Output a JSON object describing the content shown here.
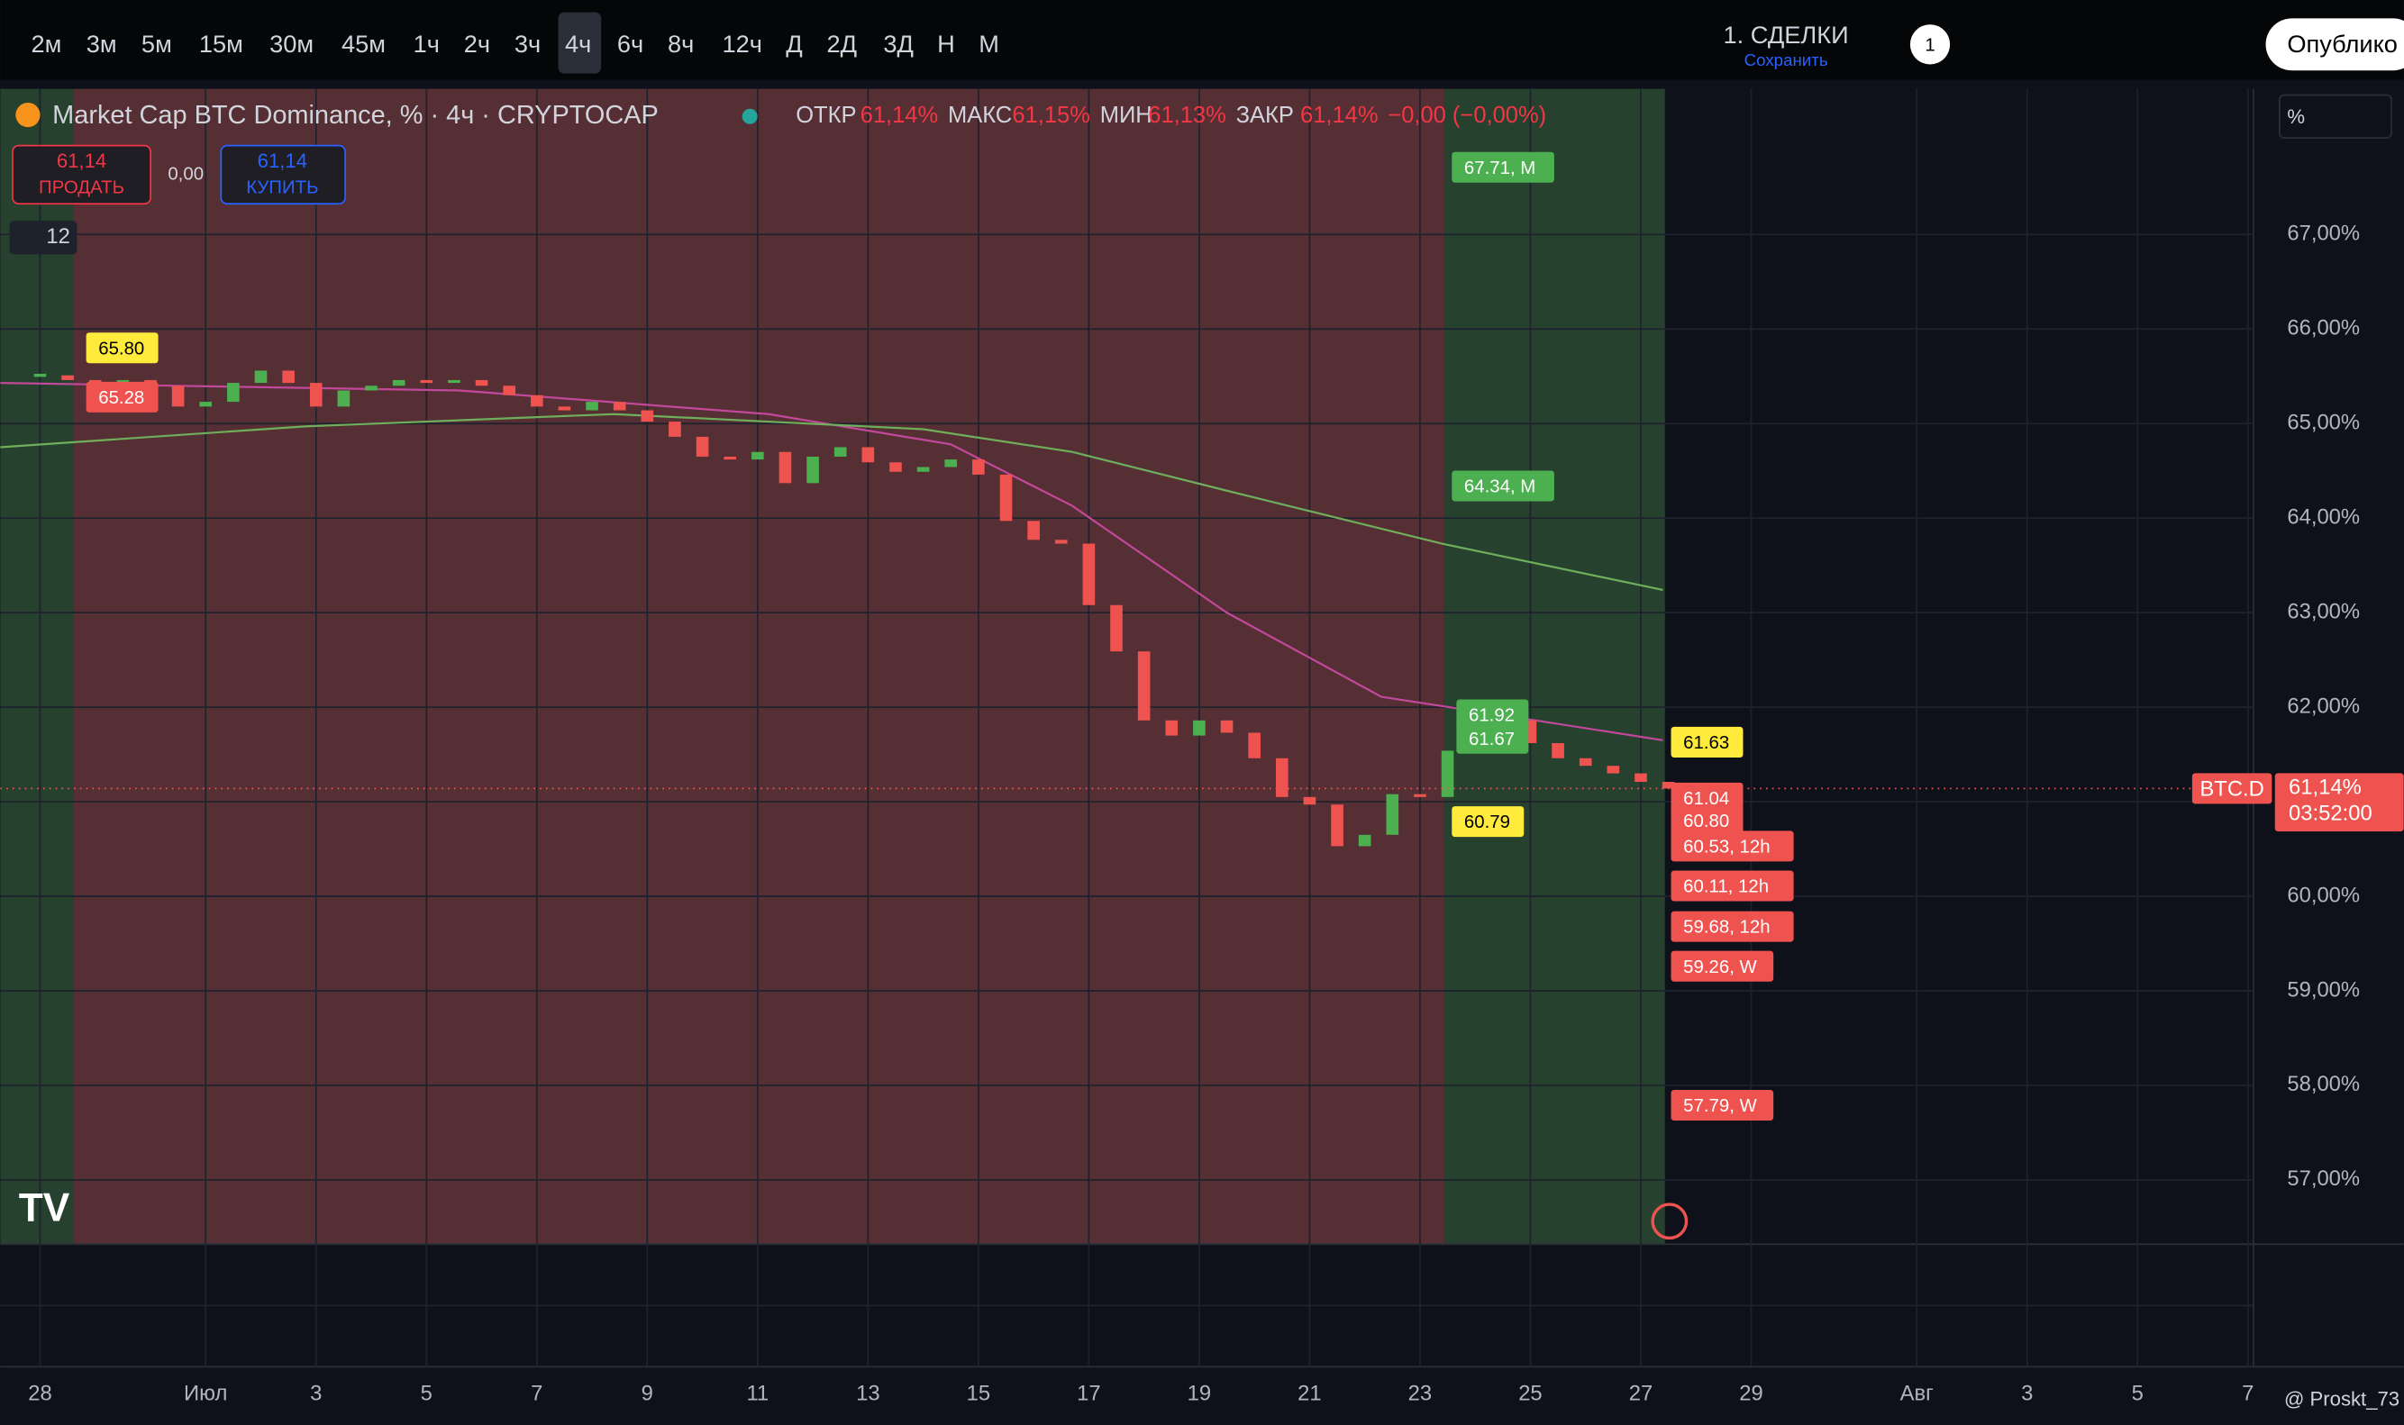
{
  "toolbar": {
    "intervals": [
      "2м",
      "3м",
      "5м",
      "15м",
      "30м",
      "45м",
      "1ч",
      "2ч",
      "3ч",
      "4ч",
      "6ч",
      "8ч",
      "12ч",
      "Д",
      "2Д",
      "3Д",
      "Н",
      "М"
    ],
    "layout": "1. СДЕЛКИ",
    "save": "Сохранить",
    "badge": "1",
    "publish": "Опублико"
  },
  "legend": {
    "title": "Market Cap BTC Dominance, % · 4ч · CRYPTOCAP",
    "ohlc": [
      [
        "ОТКР",
        "61,14%"
      ],
      [
        "МАКС",
        "61,15%"
      ],
      [
        "МИН",
        "61,13%"
      ],
      [
        "ЗАКР",
        "61,14%"
      ]
    ],
    "change": "−0,00 (−0,00%)"
  },
  "trade": {
    "sell_price": "61,14",
    "sell": "ПРОДАТЬ",
    "spread": "0,00",
    "buy_price": "61,14",
    "buy": "КУПИТЬ"
  },
  "indicators_count": "12",
  "scale_mode": "%",
  "watermark": "@ Proskt_73",
  "chart_data": {
    "type": "candlestick",
    "ylim": [
      56.32,
      68.54
    ],
    "yticks": [
      {
        "value": 57,
        "label": "57,00%"
      },
      {
        "value": 58,
        "label": "58,00%"
      },
      {
        "value": 59,
        "label": "59,00%"
      },
      {
        "value": 60,
        "label": "60,00%"
      },
      {
        "value": 61,
        "label": "61,00%"
      },
      {
        "value": 62,
        "label": "62,00%"
      },
      {
        "value": 63,
        "label": "63,00%"
      },
      {
        "value": 64,
        "label": "64,00%"
      },
      {
        "value": 65,
        "label": "65,00%"
      },
      {
        "value": 66,
        "label": "66,00%"
      },
      {
        "value": 67,
        "label": "67,00%"
      }
    ],
    "xlim": [
      -0.72,
      40.1
    ],
    "xticks": [
      {
        "value": 0,
        "label": "28"
      },
      {
        "value": 3,
        "label": "Июл"
      },
      {
        "value": 5,
        "label": "3"
      },
      {
        "value": 7,
        "label": "5"
      },
      {
        "value": 9,
        "label": "7"
      },
      {
        "value": 11,
        "label": "9"
      },
      {
        "value": 13,
        "label": "11"
      },
      {
        "value": 15,
        "label": "13"
      },
      {
        "value": 17,
        "label": "15"
      },
      {
        "value": 19,
        "label": "17"
      },
      {
        "value": 21,
        "label": "19"
      },
      {
        "value": 23,
        "label": "21"
      },
      {
        "value": 25,
        "label": "23"
      },
      {
        "value": 27,
        "label": "25"
      },
      {
        "value": 29,
        "label": "27"
      },
      {
        "value": 31,
        "label": "29"
      },
      {
        "value": 34,
        "label": "Авг"
      },
      {
        "value": 36,
        "label": "3"
      },
      {
        "value": 38,
        "label": "5"
      },
      {
        "value": 40,
        "label": "7"
      }
    ],
    "grid": true,
    "candles": {
      "up_color": "#4caf50",
      "down_color": "#ef5350",
      "x": [
        0,
        0.5,
        1,
        1.5,
        2,
        2.5,
        3,
        3.5,
        4,
        4.5,
        5,
        5.5,
        6,
        6.5,
        7,
        7.5,
        8,
        8.5,
        9,
        9.5,
        10,
        10.5,
        11,
        11.5,
        12,
        12.5,
        13,
        13.5,
        14,
        14.5,
        15,
        15.5,
        16,
        16.5,
        17,
        17.5,
        18,
        18.5,
        19,
        19.5,
        20,
        20.5,
        21,
        21.5,
        22,
        22.5,
        23,
        23.5,
        24,
        24.5,
        25,
        25.5,
        26,
        26.5,
        27,
        27.5,
        28,
        28.5,
        29,
        29.5
      ],
      "values": [
        65.51,
        65.46,
        65.43,
        65.46,
        65.4,
        65.18,
        65.23,
        65.43,
        65.56,
        65.43,
        65.18,
        65.35,
        65.4,
        65.46,
        65.43,
        65.46,
        65.4,
        65.3,
        65.18,
        65.14,
        65.23,
        65.14,
        65.02,
        64.86,
        64.65,
        64.62,
        64.7,
        64.37,
        64.65,
        64.75,
        64.59,
        64.49,
        64.54,
        64.62,
        64.46,
        63.97,
        63.77,
        63.73,
        63.08,
        62.59,
        61.86,
        61.7,
        61.86,
        61.73,
        61.46,
        61.05,
        60.97,
        60.53,
        60.65,
        61.08,
        61.05,
        61.54,
        61.94,
        61.86,
        61.62,
        61.46,
        61.38,
        61.3,
        61.21,
        61.14
      ]
    },
    "lines": [
      {
        "color": "#c2489c",
        "x": [
          -0.72,
          7.6,
          13.2,
          16.5,
          18.7,
          21.5,
          24.3,
          27.1,
          29.4
        ],
        "values": [
          65.43,
          65.35,
          65.1,
          64.78,
          64.13,
          63.0,
          62.11,
          61.86,
          61.65
        ]
      },
      {
        "color": "#6fae5a",
        "x": [
          -0.72,
          4.8,
          10.4,
          16.0,
          18.7,
          21.5,
          25.4,
          29.4
        ],
        "values": [
          64.75,
          64.97,
          65.1,
          64.94,
          64.7,
          64.29,
          63.73,
          63.24
        ]
      }
    ],
    "levels": {
      "values": [
        67.71,
        64.34,
        65.8,
        65.28,
        61.92,
        61.67,
        61.63,
        60.79,
        61.04,
        60.8,
        60.53,
        60.11,
        59.68,
        59.26,
        57.79
      ],
      "value_labels": [
        "67.71, M",
        "64.34, M",
        "65.80",
        "65.28",
        "61.92",
        "61.67",
        "61.63",
        "60.79",
        "61.04",
        "60.80",
        "60.53, 12h",
        "60.11, 12h",
        "59.68, 12h",
        "59.26, W",
        "57.79, W"
      ],
      "colors": [
        "#4caf50",
        "#4caf50",
        "#ffeb3b",
        "#ef5350",
        "#4caf50",
        "#4caf50",
        "#ffeb3b",
        "#ffeb3b",
        "#ef5350",
        "#ef5350",
        "#ef5350",
        "#ef5350",
        "#ef5350",
        "#ef5350",
        "#ef5350"
      ]
    },
    "last_price": {
      "value": 61.14,
      "label": "61,14%",
      "symbol": "BTC.D",
      "timer": "03:52:00"
    }
  }
}
